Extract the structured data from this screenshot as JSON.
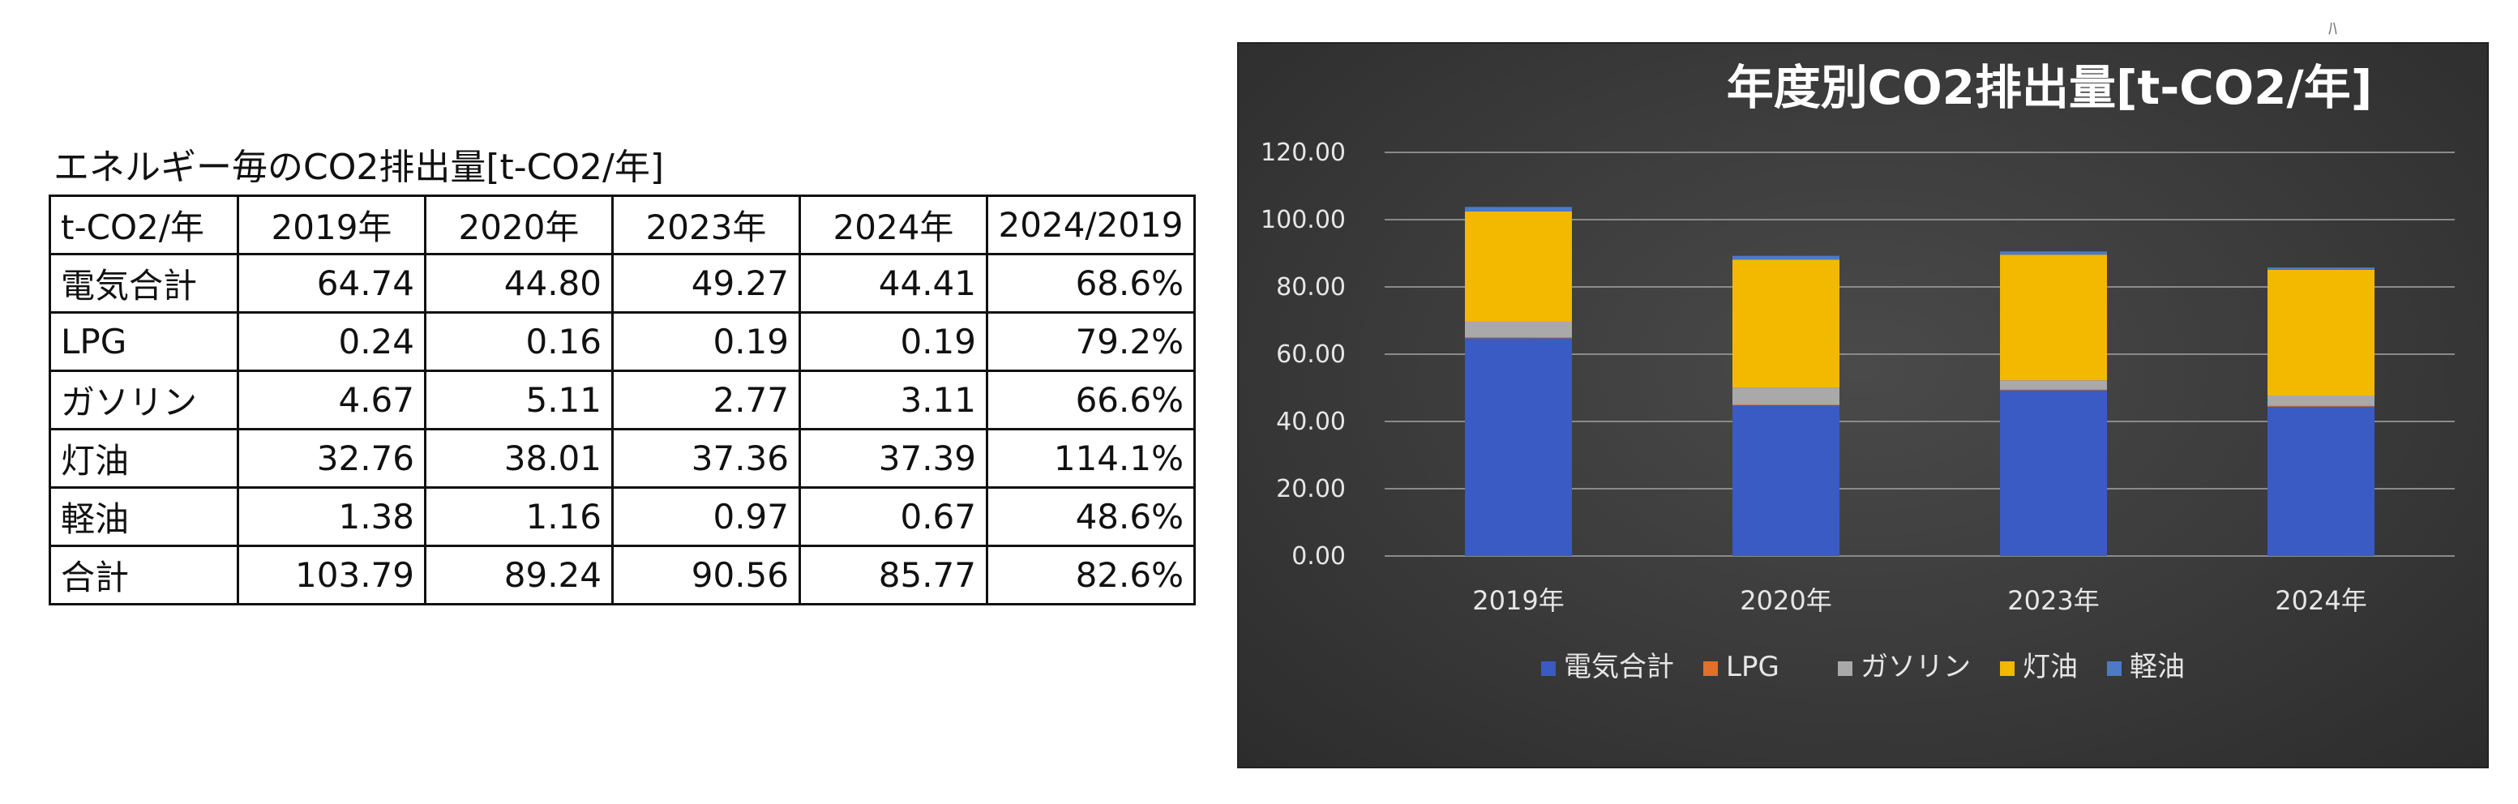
{
  "table": {
    "title": "エネルギー毎のCO2排出量[t-CO2/年]",
    "headers": [
      "t-CO2/年",
      "2019年",
      "2020年",
      "2023年",
      "2024年",
      "2024/2019"
    ],
    "rows": [
      [
        "電気合計",
        "64.74",
        "44.80",
        "49.27",
        "44.41",
        "68.6%"
      ],
      [
        "LPG",
        "0.24",
        "0.16",
        "0.19",
        "0.19",
        "79.2%"
      ],
      [
        "ガソリン",
        "4.67",
        "5.11",
        "2.77",
        "3.11",
        "66.6%"
      ],
      [
        "灯油",
        "32.76",
        "38.01",
        "37.36",
        "37.39",
        "114.1%"
      ],
      [
        "軽油",
        "1.38",
        "1.16",
        "0.97",
        "0.67",
        "48.6%"
      ],
      [
        "合計",
        "103.79",
        "89.24",
        "90.56",
        "85.77",
        "82.6%"
      ]
    ]
  },
  "corner_mark": "ﾊ",
  "chart_data": {
    "type": "bar",
    "stacked": true,
    "title": "年度別CO2排出量[t-CO2/年]",
    "categories": [
      "2019年",
      "2020年",
      "2023年",
      "2024年"
    ],
    "series": [
      {
        "name": "電気合計",
        "color": "#3a5bc4",
        "values": [
          64.74,
          44.8,
          49.27,
          44.41
        ]
      },
      {
        "name": "LPG",
        "color": "#e0702a",
        "values": [
          0.24,
          0.16,
          0.19,
          0.19
        ]
      },
      {
        "name": "ガソリン",
        "color": "#a9a9a9",
        "values": [
          4.67,
          5.11,
          2.77,
          3.11
        ]
      },
      {
        "name": "灯油",
        "color": "#f2b900",
        "values": [
          32.76,
          38.01,
          37.36,
          37.39
        ]
      },
      {
        "name": "軽油",
        "color": "#4d79c7",
        "values": [
          1.38,
          1.16,
          0.97,
          0.67
        ]
      }
    ],
    "yticks": [
      "0.00",
      "20.00",
      "40.00",
      "60.00",
      "80.00",
      "100.00",
      "120.00"
    ],
    "ylim": [
      0,
      120
    ],
    "grid": true,
    "legend_position": "bottom"
  }
}
